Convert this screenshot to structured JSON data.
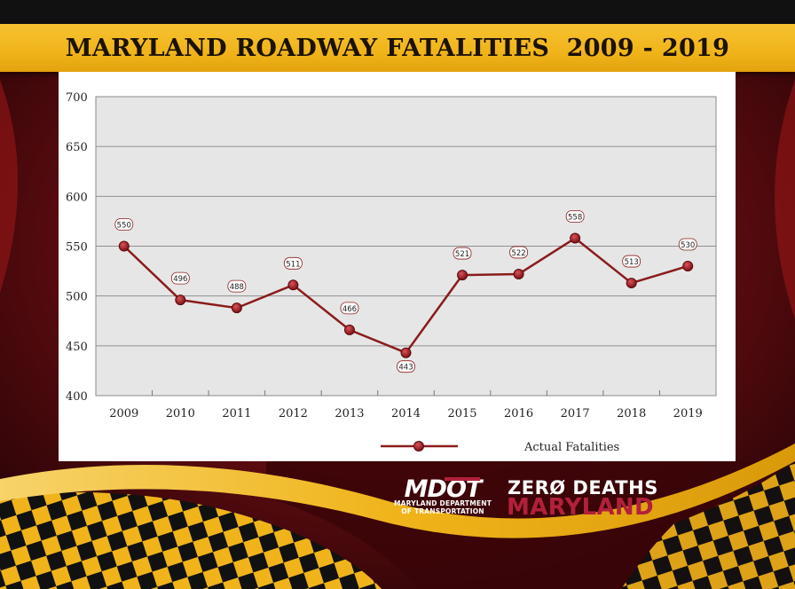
{
  "header": {
    "title": "MARYLAND ROADWAY FATALITIES  2009 - 2019"
  },
  "colors": {
    "banner": "#f0b41a",
    "series_line": "#8a1c1c",
    "plot_background": "#e6e6e6",
    "maryland_red": "#a01818",
    "maryland_gold": "#f0b41a"
  },
  "chart_data": {
    "type": "line",
    "title": "",
    "xlabel": "",
    "ylabel": "",
    "categories": [
      "2009",
      "2010",
      "2011",
      "2012",
      "2013",
      "2014",
      "2015",
      "2016",
      "2017",
      "2018",
      "2019"
    ],
    "series": [
      {
        "name": "Actual Fatalities",
        "values": [
          550,
          496,
          488,
          511,
          466,
          443,
          521,
          522,
          558,
          513,
          530
        ]
      }
    ],
    "data_labels": [
      "550",
      "496",
      "488",
      "511",
      "466",
      "443",
      "521",
      "522",
      "558",
      "513",
      "530"
    ],
    "ylim": [
      400,
      700
    ],
    "yticks": [
      400,
      450,
      500,
      550,
      600,
      650,
      700
    ],
    "grid": true,
    "legend": "bottom-center",
    "marker": "circle"
  },
  "logos": {
    "mdot_wordmark": "MDOT",
    "mdot_subtitle": "MARYLAND DEPARTMENT\nOF TRANSPORTATION",
    "zero_deaths_line1": "ZERØ DEATHS",
    "zero_deaths_line2": "MARYLAND"
  }
}
